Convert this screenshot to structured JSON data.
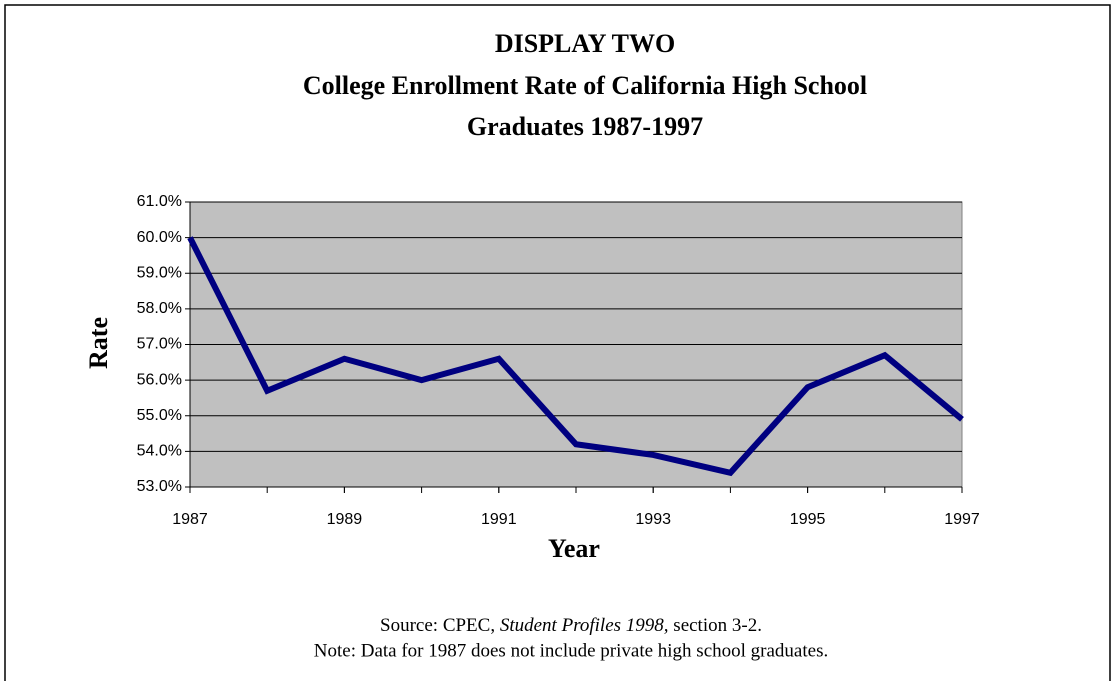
{
  "chart_data": {
    "type": "line",
    "title_lines": [
      "DISPLAY TWO",
      "College Enrollment Rate of California High School",
      "Graduates 1987-1997"
    ],
    "x_label": "Year",
    "y_label": "Rate",
    "x": [
      1987,
      1988,
      1989,
      1990,
      1991,
      1992,
      1993,
      1994,
      1995,
      1996,
      1997
    ],
    "series": [
      {
        "name": "Rate",
        "color": "#000080",
        "values": [
          60.0,
          55.7,
          56.6,
          56.0,
          56.6,
          54.2,
          53.9,
          53.4,
          55.8,
          56.7,
          54.9
        ]
      }
    ],
    "xlim": [
      1987,
      1997
    ],
    "xticks": [
      1987,
      1989,
      1991,
      1993,
      1995,
      1997
    ],
    "ylim": [
      53,
      61
    ],
    "yticks": [
      {
        "value": 53,
        "label": "53.0%"
      },
      {
        "value": 54,
        "label": "54.0%"
      },
      {
        "value": 55,
        "label": "55.0%"
      },
      {
        "value": 56,
        "label": "56.0%"
      },
      {
        "value": 57,
        "label": "57.0%"
      },
      {
        "value": 58,
        "label": "58.0%"
      },
      {
        "value": 59,
        "label": "59.0%"
      },
      {
        "value": 60,
        "label": "60.0%"
      },
      {
        "value": 61,
        "label": "61.0%"
      }
    ],
    "grid": true,
    "plot_background": "#c0c0c0",
    "source": {
      "prefix": "Source: CPEC, ",
      "title": "Student Profiles 1998,",
      "suffix": " section 3-2."
    },
    "note": "Note: Data for 1987 does not include private high school graduates."
  }
}
